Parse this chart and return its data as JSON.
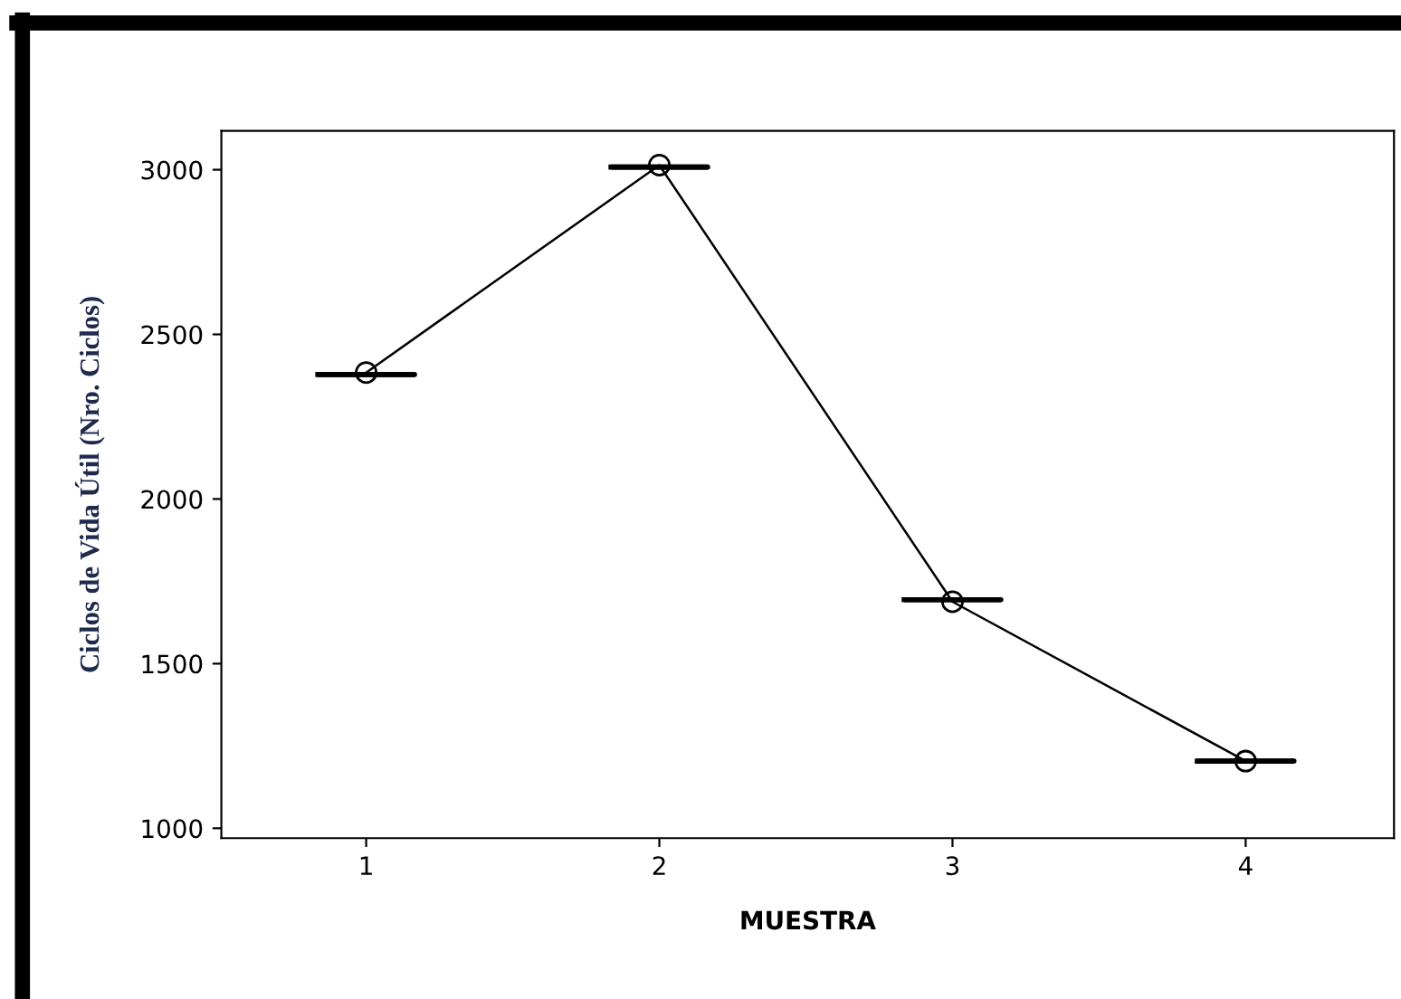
{
  "chart_data": {
    "type": "box",
    "xlabel": "MUESTRA",
    "ylabel": "Ciclos de Vida Útil (Nro. Ciclos)",
    "categories": [
      "1",
      "2",
      "3",
      "4"
    ],
    "series": [
      {
        "color": "#000000",
        "boxes": [
          {
            "low": 2378,
            "q1": 2378,
            "median": 2378,
            "q3": 2378,
            "high": 2378
          },
          {
            "low": 3008,
            "q1": 3008,
            "median": 3008,
            "q3": 3008,
            "high": 3008
          },
          {
            "low": 1694,
            "q1": 1694,
            "median": 1694,
            "q3": 1694,
            "high": 1694
          },
          {
            "low": 1204,
            "q1": 1204,
            "median": 1204,
            "q3": 1204,
            "high": 1204
          }
        ]
      },
      {
        "type": "line",
        "color": "#000000",
        "marker": "circle",
        "values": [
          2384,
          3014,
          1688,
          1204
        ]
      }
    ],
    "ylim": [
      970,
      3118
    ],
    "yticks": [
      1000,
      1500,
      2000,
      2500,
      3000
    ],
    "grid": false,
    "legend": false
  }
}
